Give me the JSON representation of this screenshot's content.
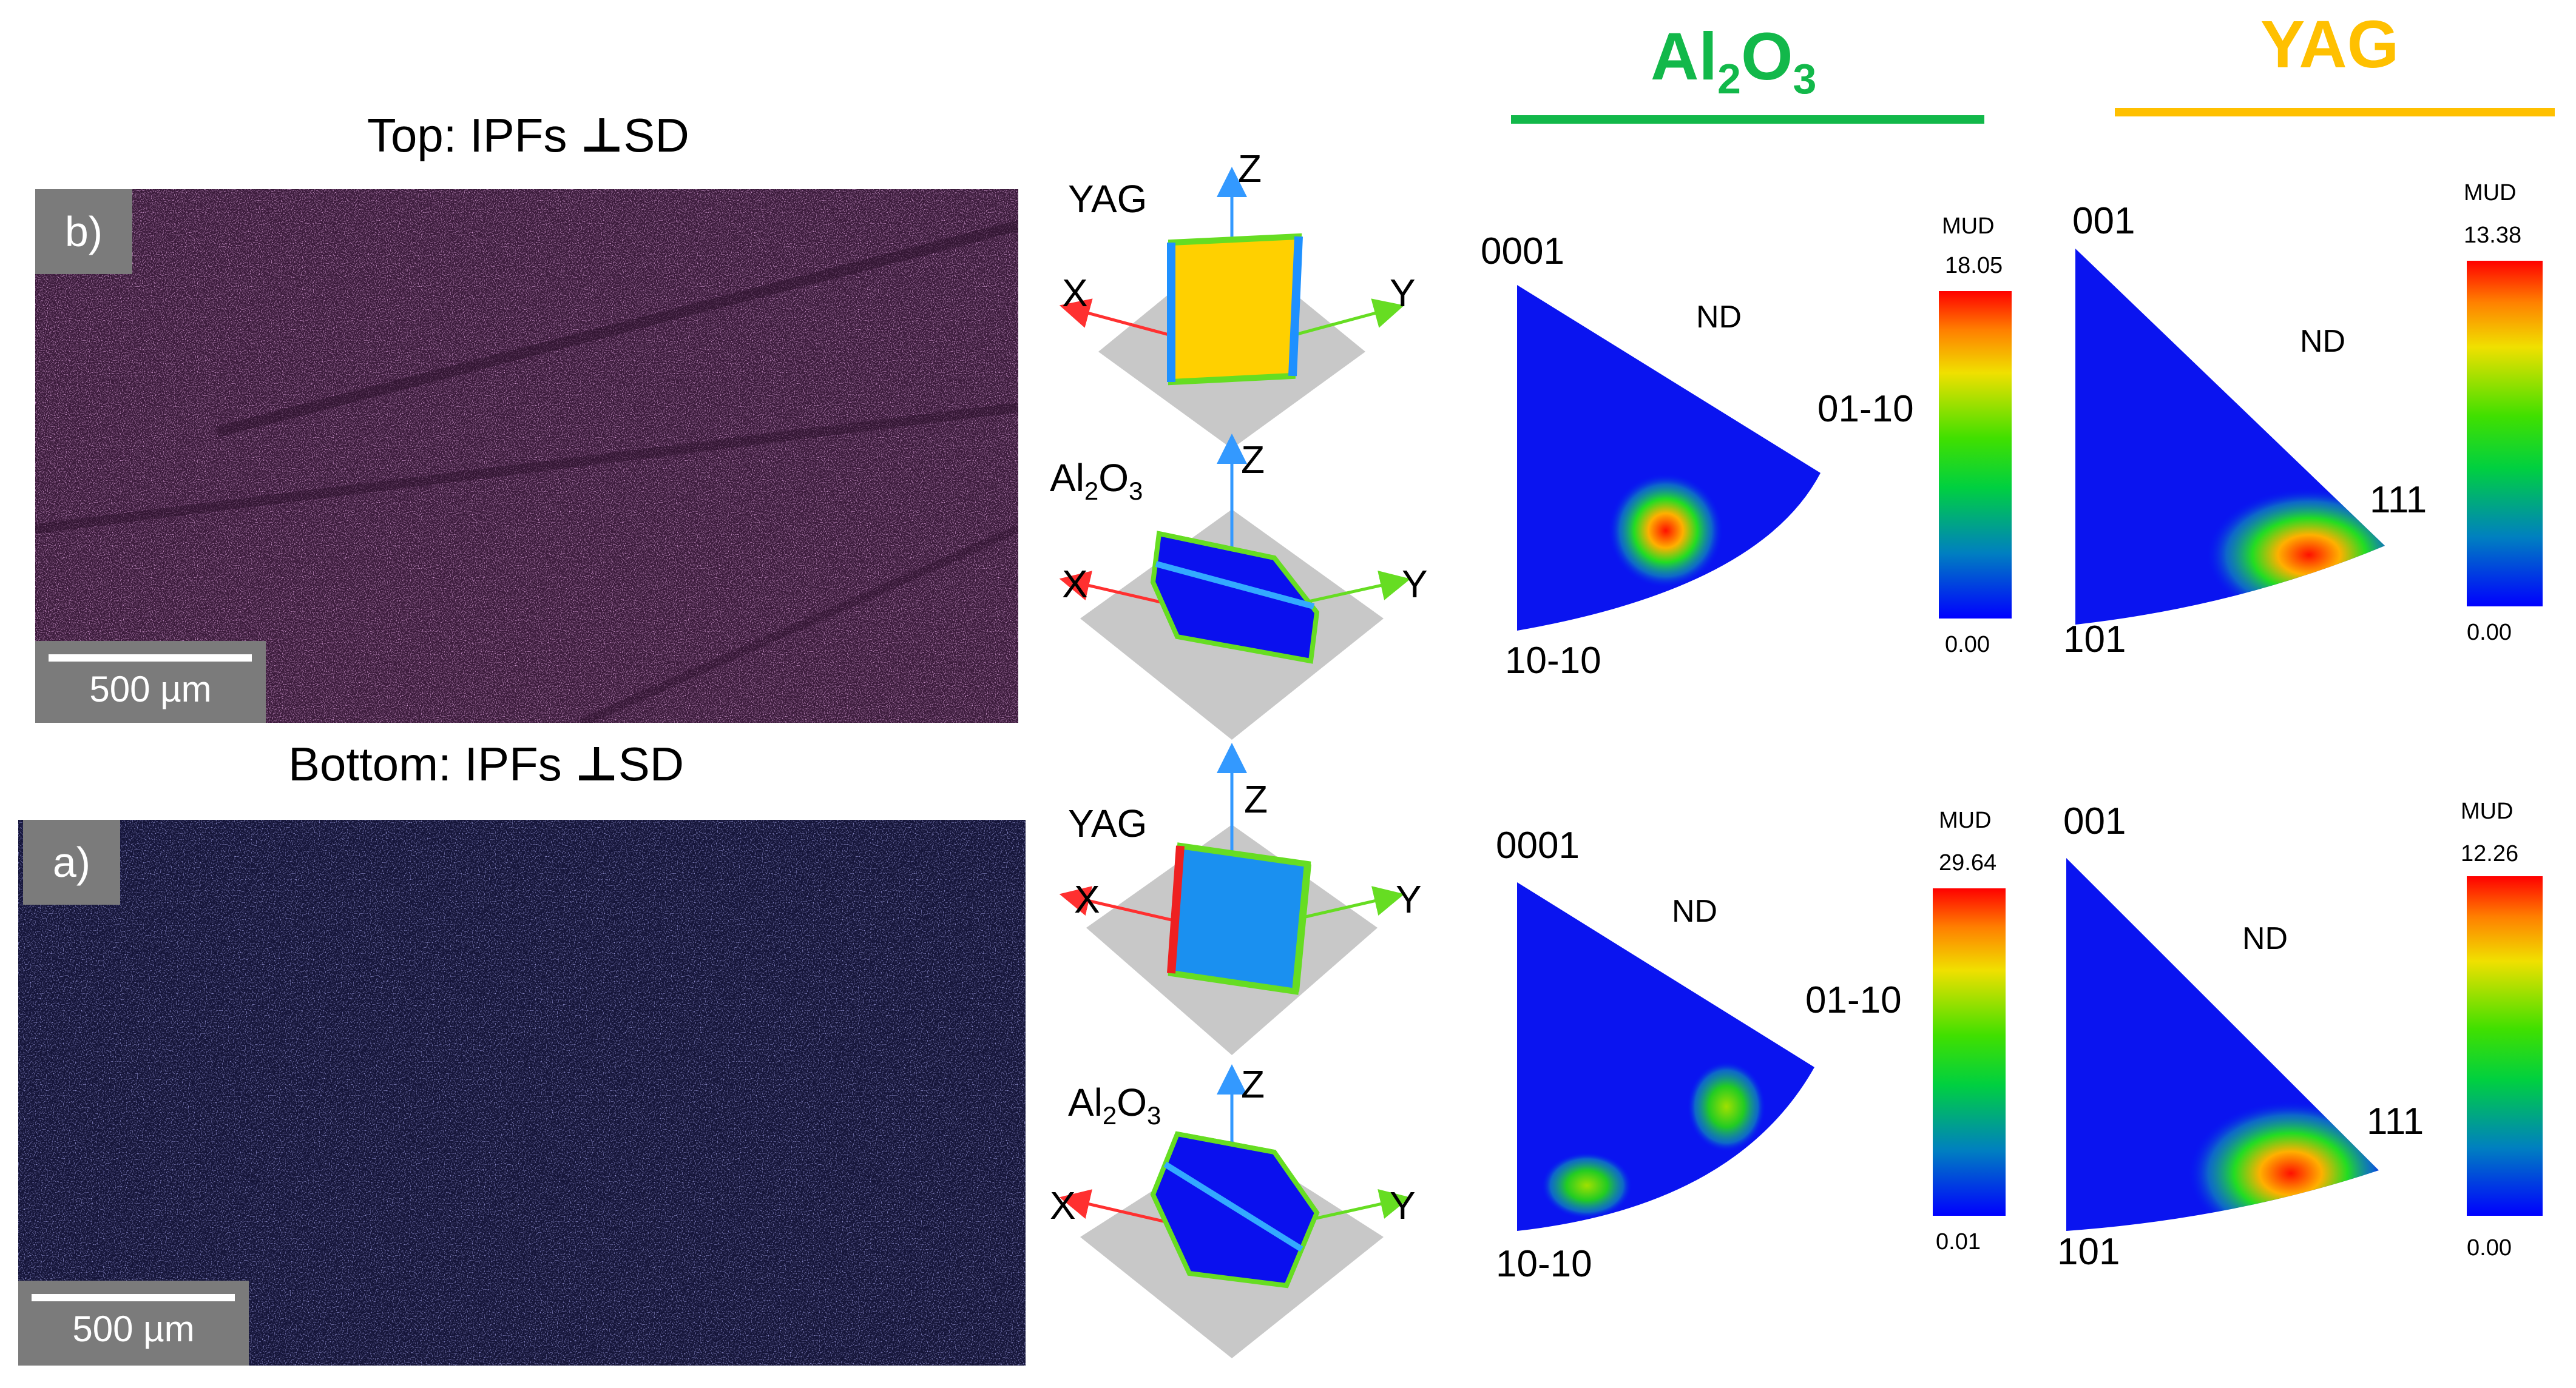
{
  "top_panel": {
    "title": "Top:  IPFs",
    "perp_symbol": "⊥",
    "title_suffix": "SD",
    "label": "b)",
    "scale": "500 µm",
    "tint": "#c070c0"
  },
  "bottom_panel": {
    "title": "Bottom:  IPFs",
    "perp_symbol": "⊥",
    "title_suffix": "SD",
    "label": "a)",
    "scale": "500 µm",
    "tint": "#5a5ad8"
  },
  "headers": {
    "al2o3": {
      "base": "Al",
      "sub1": "2",
      "mid": "O",
      "sub2": "3",
      "color": "#12b84a"
    },
    "yag": {
      "text": "YAG",
      "color": "#ffc000"
    }
  },
  "crystals": {
    "axes": {
      "x": "X",
      "y": "Y",
      "z": "Z"
    },
    "yag_label": "YAG",
    "al2o3_label": {
      "base": "Al",
      "sub1": "2",
      "mid": "O",
      "sub2": "3"
    }
  },
  "pole_figures": {
    "top_al2o3": {
      "pole_top": "0001",
      "pole_right": "01-10",
      "pole_bottom": "10-10",
      "nd": "ND"
    },
    "top_yag": {
      "pole_top": "001",
      "pole_right": "111",
      "pole_bottom": "101",
      "nd": "ND"
    },
    "bottom_al2o3": {
      "pole_top": "0001",
      "pole_right": "01-10",
      "pole_bottom": "10-10",
      "nd": "ND"
    },
    "bottom_yag": {
      "pole_top": "001",
      "pole_right": "111",
      "pole_bottom": "101",
      "nd": "ND"
    }
  },
  "colorbars": {
    "title": "MUD",
    "top_al2o3": {
      "max": "18.05",
      "min": "0.00"
    },
    "top_yag": {
      "max": "13.38",
      "min": "0.00"
    },
    "bottom_al2o3": {
      "max": "29.64",
      "min": "0.01"
    },
    "bottom_yag": {
      "max": "12.26",
      "min": "0.00"
    }
  }
}
